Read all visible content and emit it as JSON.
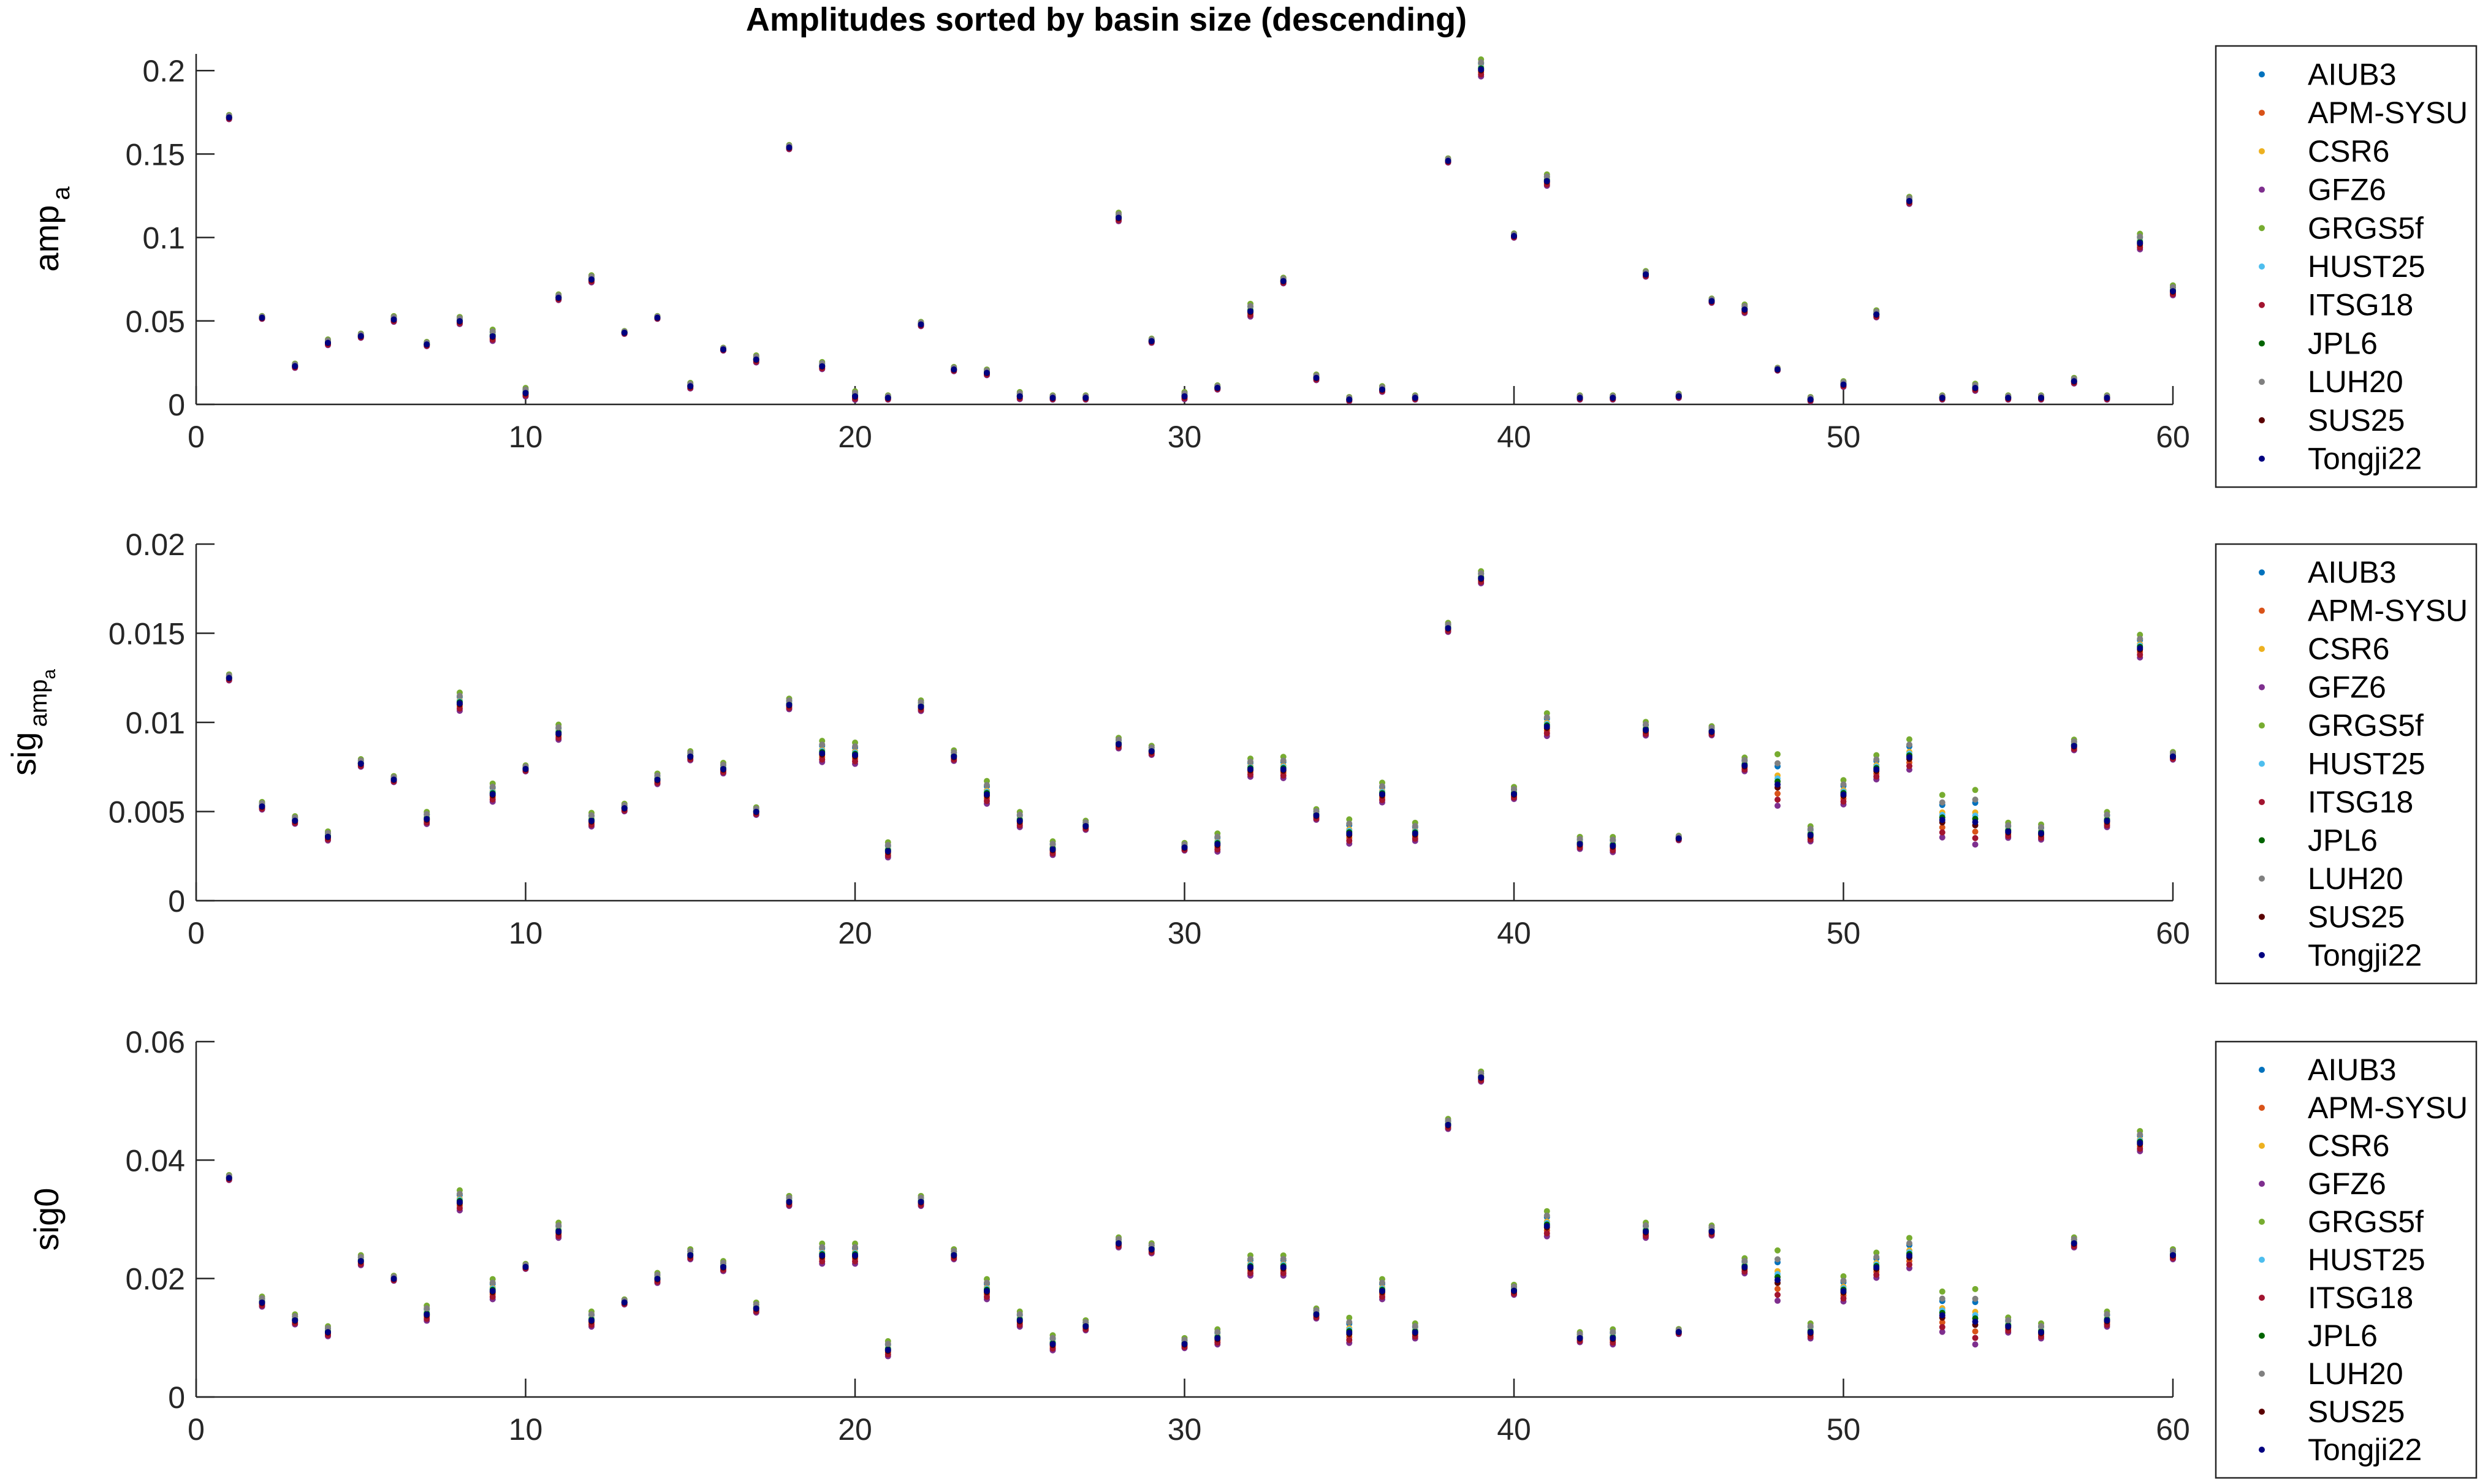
{
  "title": "Amplitudes sorted by basin size (descending)",
  "colors": {
    "AIUB3": "#0072BD",
    "APM-SYSU": "#D95319",
    "CSR6": "#EDB120",
    "GFZ6": "#7E2F8E",
    "GRGS5f": "#77AC30",
    "HUST25": "#4DBEEE",
    "ITSG18": "#A2142F",
    "JPL6": "#006400",
    "LUH20": "#808080",
    "SUS25": "#5A0000",
    "Tongji22": "#000080"
  },
  "legend_placement": "outside-right",
  "chart_data": [
    {
      "type": "scatter",
      "ylabel": "amp",
      "ylabel_sub": "a",
      "xlim": [
        0,
        60
      ],
      "ylim": [
        0,
        0.21
      ],
      "xticks": [
        0,
        10,
        20,
        30,
        40,
        50,
        60
      ],
      "yticks": [
        0,
        0.05,
        0.1,
        0.15,
        0.2
      ],
      "ytick_labels": [
        "0",
        "0.05",
        "0.1",
        "0.15",
        "0.2"
      ],
      "grid": false,
      "legend": [
        "AIUB3",
        "APM-SYSU",
        "CSR6",
        "GFZ6",
        "GRGS5f",
        "HUST25",
        "ITSG18",
        "JPL6",
        "LUH20",
        "SUS25",
        "Tongji22"
      ],
      "x": [
        1,
        2,
        3,
        4,
        5,
        6,
        7,
        8,
        9,
        10,
        11,
        12,
        13,
        14,
        15,
        16,
        17,
        18,
        19,
        20,
        21,
        22,
        23,
        24,
        25,
        26,
        27,
        28,
        29,
        30,
        31,
        32,
        33,
        34,
        35,
        36,
        37,
        38,
        39,
        40,
        41,
        42,
        43,
        44,
        45,
        46,
        47,
        48,
        49,
        50,
        51,
        52,
        53,
        54,
        55,
        56,
        57,
        58,
        59,
        60
      ],
      "center": [
        0.172,
        0.052,
        0.023,
        0.037,
        0.041,
        0.051,
        0.036,
        0.05,
        0.041,
        0.007,
        0.064,
        0.075,
        0.043,
        0.052,
        0.011,
        0.033,
        0.027,
        0.154,
        0.023,
        0.005,
        0.004,
        0.048,
        0.021,
        0.019,
        0.005,
        0.004,
        0.004,
        0.112,
        0.038,
        0.005,
        0.01,
        0.056,
        0.074,
        0.016,
        0.003,
        0.009,
        0.004,
        0.146,
        0.201,
        0.101,
        0.134,
        0.004,
        0.004,
        0.078,
        0.005,
        0.062,
        0.057,
        0.021,
        0.003,
        0.012,
        0.054,
        0.122,
        0.004,
        0.01,
        0.004,
        0.004,
        0.014,
        0.004,
        0.097,
        0.068
      ],
      "spread": [
        0.003,
        0.002,
        0.003,
        0.004,
        0.003,
        0.004,
        0.003,
        0.005,
        0.008,
        0.006,
        0.004,
        0.005,
        0.002,
        0.002,
        0.004,
        0.002,
        0.005,
        0.003,
        0.005,
        0.006,
        0.003,
        0.003,
        0.003,
        0.004,
        0.005,
        0.003,
        0.003,
        0.006,
        0.003,
        0.005,
        0.003,
        0.009,
        0.004,
        0.004,
        0.003,
        0.004,
        0.003,
        0.003,
        0.012,
        0.003,
        0.008,
        0.003,
        0.003,
        0.004,
        0.003,
        0.003,
        0.006,
        0.002,
        0.003,
        0.004,
        0.005,
        0.005,
        0.003,
        0.005,
        0.003,
        0.003,
        0.004,
        0.003,
        0.011,
        0.007
      ]
    },
    {
      "type": "scatter",
      "ylabel": "sig",
      "ylabel_sub": "amp",
      "ylabel_subsub": "a",
      "xlim": [
        0,
        60
      ],
      "ylim": [
        0,
        0.02
      ],
      "xticks": [
        0,
        10,
        20,
        30,
        40,
        50,
        60
      ],
      "yticks": [
        0,
        0.005,
        0.01,
        0.015,
        0.02
      ],
      "ytick_labels": [
        "0",
        "0.005",
        "0.01",
        "0.015",
        "0.02"
      ],
      "grid": false,
      "legend": [
        "AIUB3",
        "APM-SYSU",
        "CSR6",
        "GFZ6",
        "GRGS5f",
        "HUST25",
        "ITSG18",
        "JPL6",
        "LUH20",
        "SUS25",
        "Tongji22"
      ],
      "x": [
        1,
        2,
        3,
        4,
        5,
        6,
        7,
        8,
        9,
        10,
        11,
        12,
        13,
        14,
        15,
        16,
        17,
        18,
        19,
        20,
        21,
        22,
        23,
        24,
        25,
        26,
        27,
        28,
        29,
        30,
        31,
        32,
        33,
        34,
        35,
        36,
        37,
        38,
        39,
        40,
        41,
        42,
        43,
        44,
        45,
        46,
        47,
        48,
        49,
        50,
        51,
        52,
        53,
        54,
        55,
        56,
        57,
        58,
        59,
        60
      ],
      "center": [
        0.0125,
        0.0053,
        0.0045,
        0.0036,
        0.0077,
        0.0068,
        0.0046,
        0.0111,
        0.006,
        0.0074,
        0.0094,
        0.0045,
        0.0052,
        0.0068,
        0.0081,
        0.0074,
        0.005,
        0.011,
        0.0083,
        0.0082,
        0.0028,
        0.0109,
        0.0081,
        0.006,
        0.0045,
        0.0029,
        0.0042,
        0.0088,
        0.0084,
        0.003,
        0.0032,
        0.0074,
        0.0074,
        0.0048,
        0.0038,
        0.006,
        0.0038,
        0.0153,
        0.0181,
        0.006,
        0.0098,
        0.0032,
        0.0031,
        0.0096,
        0.0035,
        0.0095,
        0.0076,
        0.0066,
        0.0037,
        0.006,
        0.0074,
        0.0081,
        0.0046,
        0.0045,
        0.0039,
        0.0038,
        0.0087,
        0.0045,
        0.0142,
        0.0081
      ],
      "spread": [
        0.0004,
        0.0005,
        0.0005,
        0.0006,
        0.0005,
        0.0004,
        0.0008,
        0.0012,
        0.0012,
        0.0004,
        0.001,
        0.0009,
        0.0005,
        0.0007,
        0.0006,
        0.0007,
        0.0005,
        0.0007,
        0.0014,
        0.0014,
        0.001,
        0.0007,
        0.0007,
        0.0015,
        0.001,
        0.0009,
        0.0006,
        0.0007,
        0.0006,
        0.0005,
        0.0012,
        0.0012,
        0.0014,
        0.0007,
        0.0016,
        0.0013,
        0.0012,
        0.0006,
        0.0008,
        0.0008,
        0.0015,
        0.0008,
        0.001,
        0.0009,
        0.0003,
        0.0006,
        0.0009,
        0.0034,
        0.001,
        0.0016,
        0.0016,
        0.002,
        0.0028,
        0.0036,
        0.001,
        0.001,
        0.0007,
        0.001,
        0.0015,
        0.0005
      ]
    },
    {
      "type": "scatter",
      "ylabel": "sig0",
      "xlim": [
        0,
        60
      ],
      "ylim": [
        0,
        0.06
      ],
      "xticks": [
        0,
        10,
        20,
        30,
        40,
        50,
        60
      ],
      "yticks": [
        0,
        0.02,
        0.04,
        0.06
      ],
      "ytick_labels": [
        "0",
        "0.02",
        "0.04",
        "0.06"
      ],
      "grid": false,
      "legend": [
        "AIUB3",
        "APM-SYSU",
        "CSR6",
        "GFZ6",
        "GRGS5f",
        "HUST25",
        "ITSG18",
        "JPL6",
        "LUH20",
        "SUS25",
        "Tongji22"
      ],
      "x": [
        1,
        2,
        3,
        4,
        5,
        6,
        7,
        8,
        9,
        10,
        11,
        12,
        13,
        14,
        15,
        16,
        17,
        18,
        19,
        20,
        21,
        22,
        23,
        24,
        25,
        26,
        27,
        28,
        29,
        30,
        31,
        32,
        33,
        34,
        35,
        36,
        37,
        38,
        39,
        40,
        41,
        42,
        43,
        44,
        45,
        46,
        47,
        48,
        49,
        50,
        51,
        52,
        53,
        54,
        55,
        56,
        57,
        58,
        59,
        60
      ],
      "center": [
        0.037,
        0.016,
        0.013,
        0.011,
        0.023,
        0.02,
        0.014,
        0.033,
        0.018,
        0.022,
        0.028,
        0.013,
        0.016,
        0.02,
        0.024,
        0.022,
        0.015,
        0.033,
        0.024,
        0.024,
        0.008,
        0.033,
        0.024,
        0.018,
        0.013,
        0.009,
        0.012,
        0.026,
        0.025,
        0.009,
        0.01,
        0.022,
        0.022,
        0.014,
        0.011,
        0.018,
        0.011,
        0.046,
        0.054,
        0.018,
        0.029,
        0.01,
        0.01,
        0.028,
        0.011,
        0.028,
        0.022,
        0.02,
        0.011,
        0.018,
        0.022,
        0.024,
        0.014,
        0.013,
        0.012,
        0.011,
        0.026,
        0.013,
        0.043,
        0.024
      ],
      "spread": [
        0.001,
        0.002,
        0.002,
        0.002,
        0.002,
        0.001,
        0.003,
        0.004,
        0.004,
        0.001,
        0.003,
        0.003,
        0.001,
        0.002,
        0.002,
        0.002,
        0.002,
        0.002,
        0.004,
        0.004,
        0.003,
        0.002,
        0.002,
        0.004,
        0.003,
        0.003,
        0.002,
        0.002,
        0.002,
        0.002,
        0.003,
        0.004,
        0.004,
        0.002,
        0.005,
        0.004,
        0.003,
        0.002,
        0.002,
        0.002,
        0.005,
        0.002,
        0.003,
        0.003,
        0.001,
        0.002,
        0.003,
        0.01,
        0.003,
        0.005,
        0.005,
        0.006,
        0.008,
        0.011,
        0.003,
        0.003,
        0.002,
        0.003,
        0.004,
        0.002
      ]
    }
  ]
}
